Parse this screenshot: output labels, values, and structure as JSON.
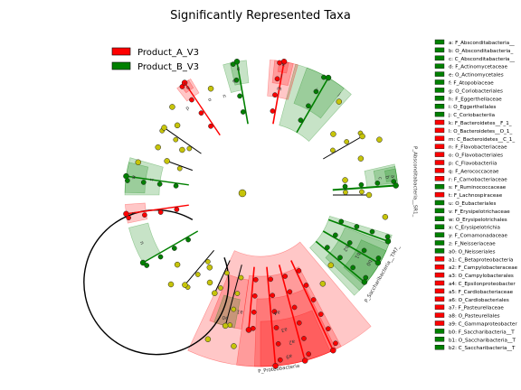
{
  "chart_data": {
    "type": "cladogram",
    "title": "Significantly Represented Taxa",
    "groups": [
      {
        "name": "Product_A_V3",
        "color": "#ff0000"
      },
      {
        "name": "Product_B_V3",
        "color": "#008000"
      }
    ],
    "node_neutral_color": "#c6c40a",
    "taxa_key": [
      {
        "code": "a",
        "label": "a: F_Absconditabacteria__",
        "group": "Product_B_V3"
      },
      {
        "code": "b",
        "label": "b: O_Absconditabacteria_",
        "group": "Product_B_V3"
      },
      {
        "code": "c",
        "label": "c: C_Absconditabacteria__",
        "group": "Product_B_V3"
      },
      {
        "code": "d",
        "label": "d: F_Actinomycetaceae",
        "group": "Product_B_V3"
      },
      {
        "code": "e",
        "label": "e: O_Actinomycetales",
        "group": "Product_B_V3"
      },
      {
        "code": "f",
        "label": "f: F_Atopobiaceae",
        "group": "Product_B_V3"
      },
      {
        "code": "g",
        "label": "g: O_Coriobacteriales",
        "group": "Product_B_V3"
      },
      {
        "code": "h",
        "label": "h: F_Eggerthellaceae",
        "group": "Product_B_V3"
      },
      {
        "code": "i",
        "label": "i: O_Eggerthellales",
        "group": "Product_B_V3"
      },
      {
        "code": "j",
        "label": "j: C_Coriobacteriia",
        "group": "Product_B_V3"
      },
      {
        "code": "k",
        "label": "k: F_Bacteroidetes__F_1_",
        "group": "Product_A_V3"
      },
      {
        "code": "l",
        "label": "l: O_Bacteroidetes__O_1_",
        "group": "Product_A_V3"
      },
      {
        "code": "m",
        "label": "m: C_Bacteroidetes__C_1_",
        "group": "Product_A_V3"
      },
      {
        "code": "n",
        "label": "n: F_Flavobacteriaceae",
        "group": "Product_A_V3"
      },
      {
        "code": "o",
        "label": "o: O_Flavobacteriales",
        "group": "Product_A_V3"
      },
      {
        "code": "p",
        "label": "p: C_Flavobacteriia",
        "group": "Product_A_V3"
      },
      {
        "code": "q",
        "label": "q: F_Aerococcaceae",
        "group": "Product_A_V3"
      },
      {
        "code": "r",
        "label": "r: F_Carnobacteriaceae",
        "group": "Product_A_V3"
      },
      {
        "code": "s",
        "label": "s: F_Ruminococcaceae",
        "group": "Product_B_V3"
      },
      {
        "code": "t",
        "label": "t: F_Lachnospiraceae",
        "group": "Product_A_V3"
      },
      {
        "code": "u",
        "label": "u: O_Eubacteriales",
        "group": "Product_B_V3"
      },
      {
        "code": "v",
        "label": "v: F_Erysipelotrichaceae",
        "group": "Product_B_V3"
      },
      {
        "code": "w",
        "label": "w: O_Erysipelotrichales",
        "group": "Product_B_V3"
      },
      {
        "code": "x",
        "label": "x: C_Erysipelotrichia",
        "group": "Product_B_V3"
      },
      {
        "code": "y",
        "label": "y: F_Comamonadaceae",
        "group": "Product_B_V3"
      },
      {
        "code": "z",
        "label": "z: F_Neisseriaceae",
        "group": "Product_B_V3"
      },
      {
        "code": "a0",
        "label": "a0: O_Neisseriales",
        "group": "Product_B_V3"
      },
      {
        "code": "a1",
        "label": "a1: C_Betaproteobacteria",
        "group": "Product_A_V3"
      },
      {
        "code": "a2",
        "label": "a2: F_Campylobacteraceae",
        "group": "Product_A_V3"
      },
      {
        "code": "a3",
        "label": "a3: O_Campylobacterales",
        "group": "Product_A_V3"
      },
      {
        "code": "a4",
        "label": "a4: C_Epsilonproteobacter",
        "group": "Product_A_V3"
      },
      {
        "code": "a5",
        "label": "a5: F_Cardiobacteriaceae",
        "group": "Product_A_V3"
      },
      {
        "code": "a6",
        "label": "a6: O_Cardiobacteriales",
        "group": "Product_A_V3"
      },
      {
        "code": "a7",
        "label": "a7: F_Pasteurellaceae",
        "group": "Product_A_V3"
      },
      {
        "code": "a8",
        "label": "a8: O_Pasteurellales",
        "group": "Product_A_V3"
      },
      {
        "code": "a9",
        "label": "a9: C_Gammaproteobacter",
        "group": "Product_A_V3"
      },
      {
        "code": "b0",
        "label": "b0: F_Saccharibacteria__T",
        "group": "Product_B_V3"
      },
      {
        "code": "b1",
        "label": "b1: O_Saccharibacteria__T",
        "group": "Product_B_V3"
      },
      {
        "code": "b2",
        "label": "b2: C_Saccharibacteria__T",
        "group": "Product_B_V3"
      }
    ],
    "ring_labels": [
      "P_Absconditabacteria__SR1_",
      "P_Saccharibacteria__TM7_",
      "P_Proteobacteria"
    ],
    "clade_letters": [
      "a",
      "b",
      "c",
      "d",
      "e",
      "i",
      "j",
      "k",
      "l",
      "m",
      "n",
      "o",
      "p",
      "q",
      "r",
      "t",
      "u",
      "w",
      "x",
      "a0",
      "a1",
      "a2",
      "a3",
      "a4",
      "a9",
      "b0",
      "b1",
      "b2"
    ]
  }
}
